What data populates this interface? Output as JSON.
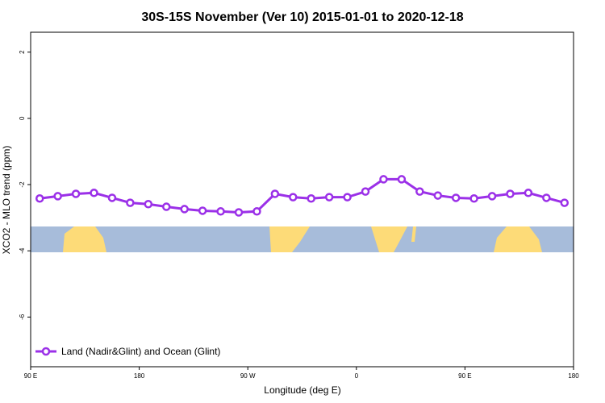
{
  "chart_data": {
    "type": "line",
    "title": "30S-15S November (Ver 10)   2015-01-01 to 2020-12-18",
    "x_label": "Longitude (deg E)",
    "y_label": "XCO2 - MLO trend (ppm)",
    "x": [
      97.5,
      112.5,
      127.5,
      142.5,
      157.5,
      172.5,
      187.5,
      202.5,
      217.5,
      232.5,
      247.5,
      262.5,
      277.5,
      292.5,
      307.5,
      322.5,
      337.5,
      352.5,
      367.5,
      382.5,
      397.5,
      412.5,
      427.5,
      442.5,
      457.5,
      472.5,
      487.5,
      502.5,
      517.5,
      532.5
    ],
    "series": [
      {
        "name": "Land (Nadir&Glint) and Ocean (Glint)",
        "color": "#9b30e8",
        "values": [
          -2.42,
          -2.35,
          -2.28,
          -2.25,
          -2.4,
          -2.55,
          -2.59,
          -2.67,
          -2.74,
          -2.79,
          -2.81,
          -2.84,
          -2.81,
          -2.28,
          -2.38,
          -2.42,
          -2.38,
          -2.38,
          -2.21,
          -1.84,
          -1.84,
          -2.21,
          -2.33,
          -2.4,
          -2.42,
          -2.35,
          -2.28,
          -2.25,
          -2.4,
          -2.55
        ]
      }
    ],
    "xlim": [
      90,
      540
    ],
    "xticks": [
      {
        "value": 90,
        "label": "90 E"
      },
      180,
      {
        "value": 270,
        "label": "90 W"
      },
      {
        "value": 360,
        "label": "0"
      },
      {
        "value": 450,
        "label": "90 E"
      },
      {
        "value": 540,
        "label": "180"
      }
    ],
    "ylim": [
      -7.5,
      2.6
    ],
    "yticks": [
      -6,
      -4,
      -2,
      0,
      2
    ],
    "legend": "bottom-left"
  }
}
